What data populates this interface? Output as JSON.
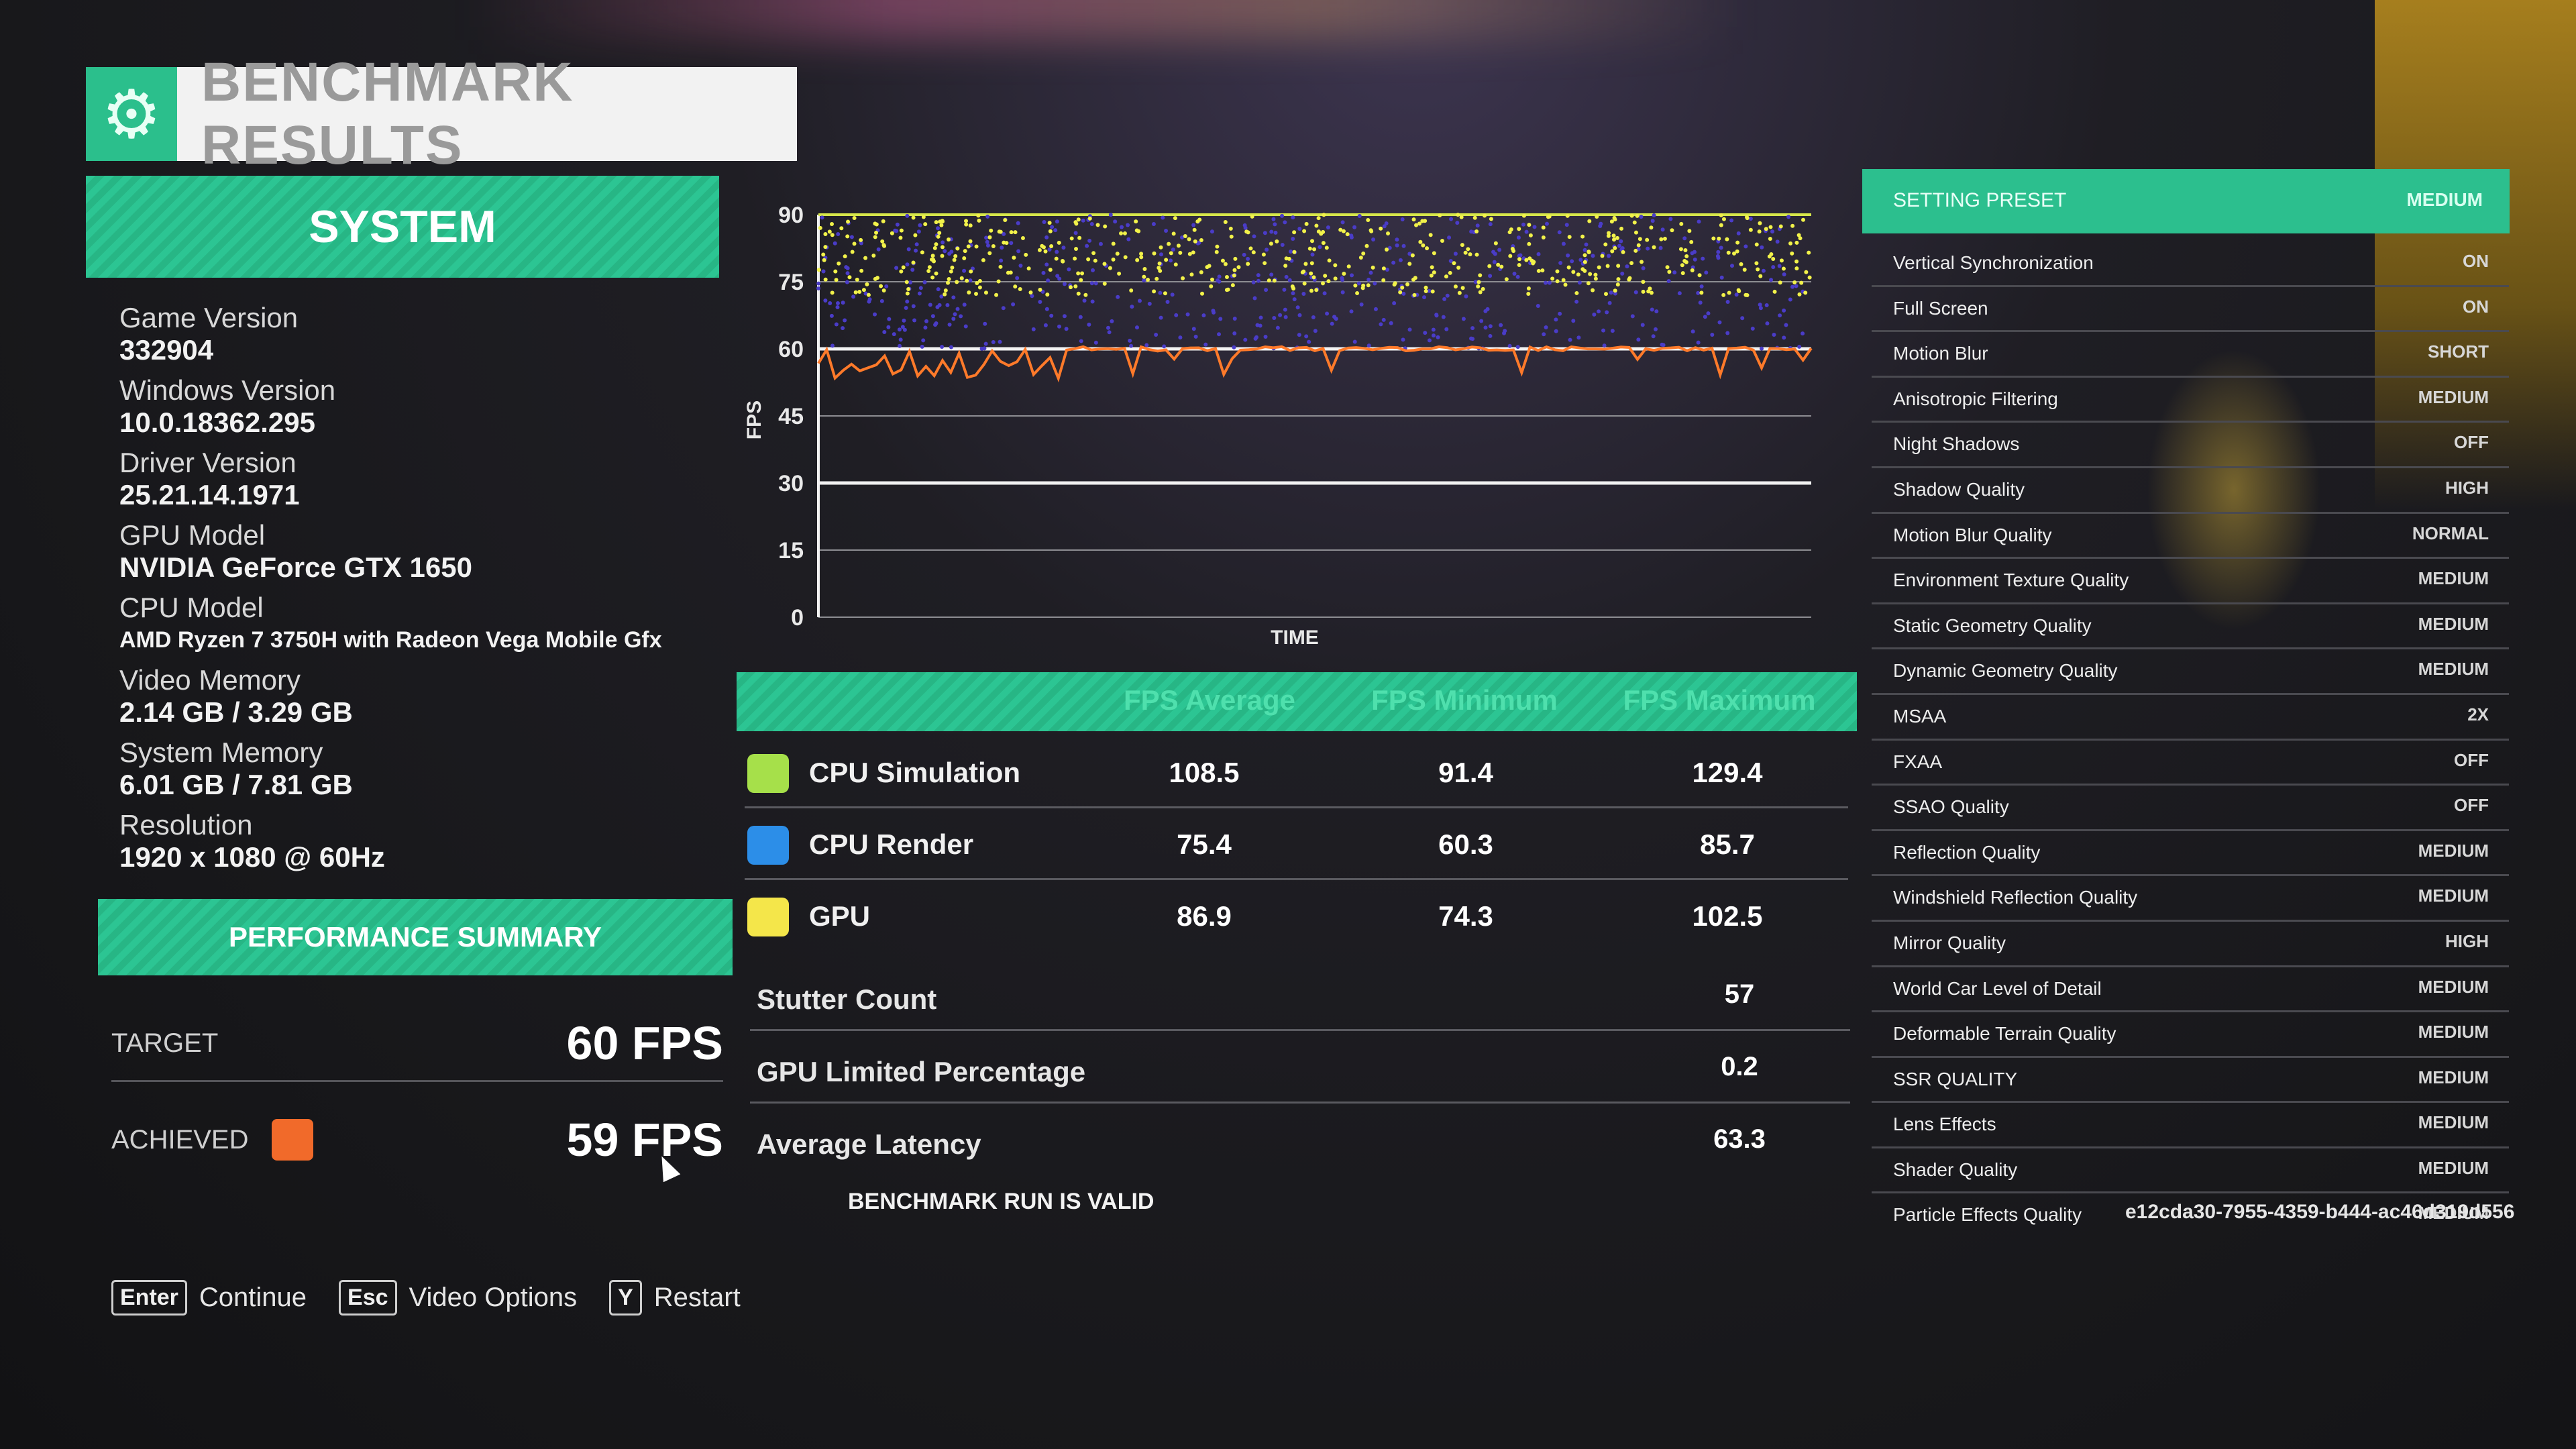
{
  "title": {
    "text": "BENCHMARK RESULTS",
    "icon": "gear-icon"
  },
  "system": {
    "header": "SYSTEM",
    "items": [
      {
        "label": "Game Version",
        "value": "332904"
      },
      {
        "label": "Windows Version",
        "value": "10.0.18362.295"
      },
      {
        "label": "Driver Version",
        "value": "25.21.14.1971"
      },
      {
        "label": "GPU Model",
        "value": "NVIDIA GeForce GTX 1650"
      },
      {
        "label": "CPU Model",
        "value": "AMD Ryzen 7 3750H with Radeon Vega Mobile Gfx"
      },
      {
        "label": "Video Memory",
        "value": "2.14 GB / 3.29 GB"
      },
      {
        "label": "System Memory",
        "value": "6.01 GB / 7.81 GB"
      },
      {
        "label": "Resolution",
        "value": "1920 x 1080 @ 60Hz"
      }
    ]
  },
  "performance": {
    "header": "PERFORMANCE SUMMARY",
    "target_label": "TARGET",
    "target_value": "60 FPS",
    "achieved_label": "ACHIEVED",
    "achieved_value": "59 FPS",
    "achieved_color": "#f16a2a"
  },
  "chart_data": {
    "type": "line",
    "ylabel": "FPS",
    "xlabel": "TIME",
    "ylim": [
      0,
      90
    ],
    "yticks": [
      90,
      75,
      60,
      45,
      30,
      15,
      0
    ],
    "reference_lines": [
      60,
      30
    ],
    "series": [
      {
        "color": "#f2f24a"
      },
      {
        "color": "#4a3cc8"
      },
      {
        "color": "#ff7a2a"
      }
    ]
  },
  "fps_table": {
    "headers": [
      "FPS Average",
      "FPS Minimum",
      "FPS Maximum"
    ],
    "rows": [
      {
        "name": "CPU Simulation",
        "color": "#a6e04a",
        "values": [
          "108.5",
          "91.4",
          "129.4"
        ]
      },
      {
        "name": "CPU Render",
        "color": "#2c8ee8",
        "values": [
          "75.4",
          "60.3",
          "85.7"
        ]
      },
      {
        "name": "GPU",
        "color": "#f4e64a",
        "values": [
          "86.9",
          "74.3",
          "102.5"
        ]
      }
    ],
    "stats": [
      {
        "name": "Stutter Count",
        "value": "57"
      },
      {
        "name": "GPU Limited Percentage",
        "value": "0.2"
      },
      {
        "name": "Average Latency",
        "value": "63.3"
      }
    ],
    "valid_text": "BENCHMARK RUN IS VALID"
  },
  "settings": {
    "header_label": "SETTING PRESET",
    "header_value": "MEDIUM",
    "items": [
      {
        "name": "Vertical Synchronization",
        "value": "ON"
      },
      {
        "name": "Full Screen",
        "value": "ON"
      },
      {
        "name": "Motion Blur",
        "value": "SHORT"
      },
      {
        "name": "Anisotropic Filtering",
        "value": "MEDIUM"
      },
      {
        "name": "Night Shadows",
        "value": "OFF"
      },
      {
        "name": "Shadow Quality",
        "value": "HIGH"
      },
      {
        "name": "Motion Blur Quality",
        "value": "NORMAL"
      },
      {
        "name": "Environment Texture Quality",
        "value": "MEDIUM"
      },
      {
        "name": "Static Geometry Quality",
        "value": "MEDIUM"
      },
      {
        "name": "Dynamic Geometry Quality",
        "value": "MEDIUM"
      },
      {
        "name": "MSAA",
        "value": "2X"
      },
      {
        "name": "FXAA",
        "value": "OFF"
      },
      {
        "name": "SSAO Quality",
        "value": "OFF"
      },
      {
        "name": "Reflection Quality",
        "value": "MEDIUM"
      },
      {
        "name": "Windshield Reflection Quality",
        "value": "MEDIUM"
      },
      {
        "name": "Mirror Quality",
        "value": "HIGH"
      },
      {
        "name": "World Car Level of Detail",
        "value": "MEDIUM"
      },
      {
        "name": "Deformable Terrain Quality",
        "value": "MEDIUM"
      },
      {
        "name": "SSR QUALITY",
        "value": "MEDIUM"
      },
      {
        "name": "Lens Effects",
        "value": "MEDIUM"
      },
      {
        "name": "Shader Quality",
        "value": "MEDIUM"
      },
      {
        "name": "Particle Effects Quality",
        "value": "MEDIUM"
      }
    ]
  },
  "run_id": "e12cda30-7955-4359-b444-ac46d319d556",
  "footer": [
    {
      "key": "Enter",
      "label": "Continue"
    },
    {
      "key": "Esc",
      "label": "Video Options"
    },
    {
      "key": "Y",
      "label": "Restart"
    }
  ]
}
